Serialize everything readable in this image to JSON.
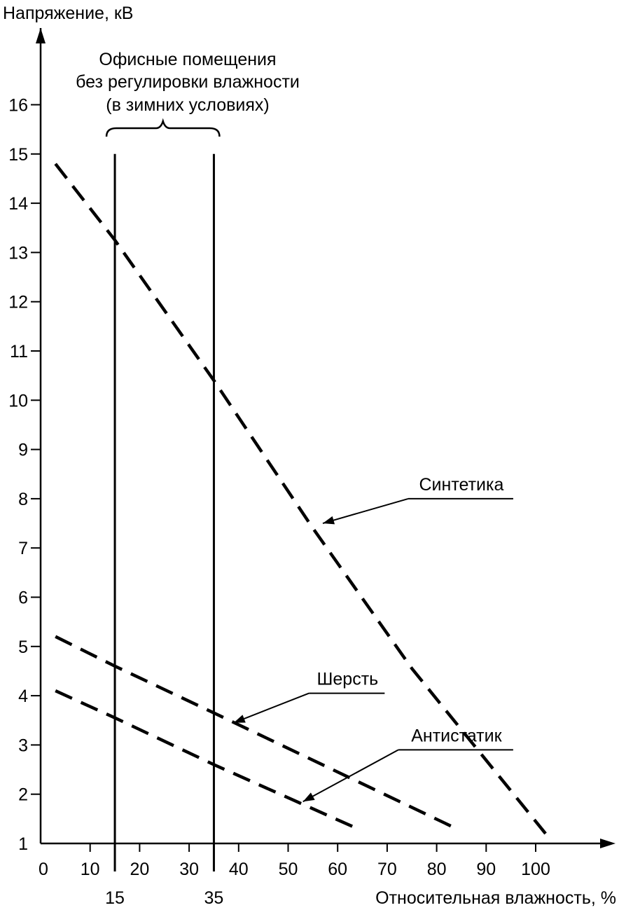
{
  "chart_data": {
    "type": "line",
    "ylabel": "Напряжение, кВ",
    "xlabel": "Относительная влажность, %",
    "xlim": [
      0,
      110
    ],
    "ylim": [
      1,
      16.5
    ],
    "x_ticks": [
      0,
      10,
      20,
      30,
      40,
      50,
      60,
      70,
      80,
      90,
      100
    ],
    "y_ticks": [
      1,
      2,
      3,
      4,
      5,
      6,
      7,
      8,
      9,
      10,
      11,
      12,
      13,
      14,
      15,
      16
    ],
    "grid": false,
    "legend": "none",
    "region": {
      "label_lines": [
        "Офисные помещения",
        "без регулировки влажности",
        "(в зимних условиях)"
      ],
      "x_start": 15,
      "x_end": 35,
      "x_start_label": "15",
      "x_end_label": "35",
      "top_value": 15
    },
    "series": [
      {
        "name": "Синтетика",
        "style": "dashed",
        "x": [
          3,
          15,
          35,
          55,
          75,
          102
        ],
        "y": [
          14.8,
          13.25,
          10.4,
          7.4,
          4.55,
          1.2
        ],
        "label_x": 85,
        "label_y": 8.0,
        "arrow_x": 57,
        "arrow_y": 7.5
      },
      {
        "name": "Шерсть",
        "style": "dashed",
        "x": [
          3,
          15,
          35,
          84
        ],
        "y": [
          5.2,
          4.6,
          3.65,
          1.3
        ],
        "label_x": 62,
        "label_y": 4.05,
        "arrow_x": 39,
        "arrow_y": 3.45
      },
      {
        "name": "Антистатик",
        "style": "dashed",
        "x": [
          3,
          15,
          35,
          64
        ],
        "y": [
          4.1,
          3.55,
          2.6,
          1.3
        ],
        "label_x": 84,
        "label_y": 2.9,
        "arrow_x": 53,
        "arrow_y": 1.85
      }
    ]
  }
}
